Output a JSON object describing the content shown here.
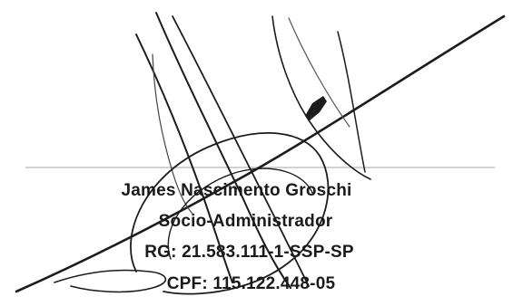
{
  "signature_block": {
    "name": "James Nascimento Groschi",
    "role": "Socio-Administrador",
    "rg": "RG: 21.583.111-1-SSP-SP",
    "cpf": "CPF: 115.122.448-05"
  },
  "colors": {
    "ink": "#1a1a1a",
    "signature_line": "#b5b5b5",
    "background": "#ffffff"
  }
}
